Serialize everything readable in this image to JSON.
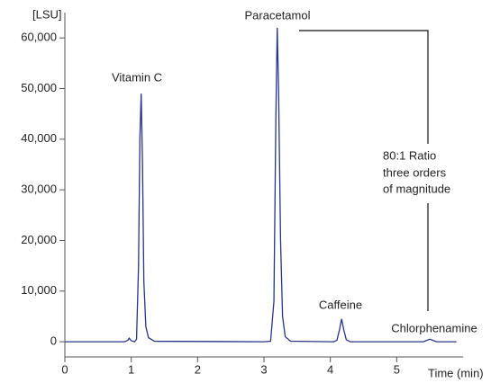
{
  "chart_data": {
    "type": "line",
    "y_label": "[LSU]",
    "x_label": "Time (min)",
    "x": [
      0,
      0.9,
      0.95,
      0.97,
      1.0,
      1.05,
      1.08,
      1.11,
      1.13,
      1.15,
      1.17,
      1.19,
      1.22,
      1.26,
      1.35,
      3.0,
      3.1,
      3.15,
      3.18,
      3.2,
      3.22,
      3.25,
      3.28,
      3.32,
      3.4,
      4.05,
      4.1,
      4.14,
      4.17,
      4.2,
      4.24,
      4.3,
      5.4,
      5.5,
      5.6,
      5.9
    ],
    "series": [
      {
        "color": "#27348b",
        "values": [
          0,
          0,
          300,
          700,
          200,
          0,
          500,
          15000,
          40000,
          49000,
          35000,
          12000,
          3000,
          800,
          100,
          0,
          100,
          8000,
          45000,
          62000,
          50000,
          20000,
          5000,
          1000,
          100,
          0,
          300,
          2500,
          4500,
          2500,
          400,
          0,
          0,
          500,
          0,
          0
        ]
      }
    ],
    "xlim": [
      0,
      6
    ],
    "xticks": [
      0,
      1,
      2,
      3,
      4,
      5
    ],
    "ylim": [
      -3000,
      65000
    ],
    "yticks": [
      0,
      {
        "value": 10000,
        "label": "10,000"
      },
      {
        "value": 20000,
        "label": "20,000"
      },
      {
        "value": 30000,
        "label": "30,000"
      },
      {
        "value": 40000,
        "label": "40,000"
      },
      {
        "value": 50000,
        "label": "50,000"
      },
      {
        "value": 60000,
        "label": "60,000"
      }
    ],
    "annotations": [
      "Vitamin C",
      "Paracetamol",
      "Caffeine",
      "Chlorphenamine",
      "80:1 Ratio",
      "three orders",
      "of magnitude"
    ]
  }
}
